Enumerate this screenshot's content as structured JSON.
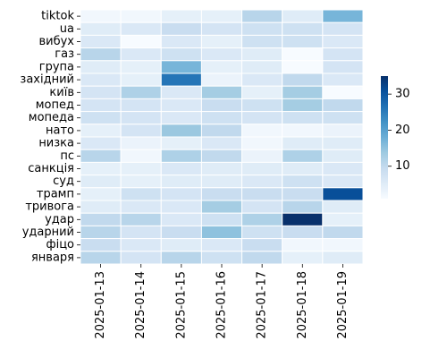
{
  "chart_data": {
    "type": "heatmap",
    "x": [
      "2025-01-13",
      "2025-01-14",
      "2025-01-15",
      "2025-01-16",
      "2025-01-17",
      "2025-01-18",
      "2025-01-19"
    ],
    "y": [
      "tiktok",
      "ua",
      "вибух",
      "газ",
      "група",
      "західний",
      "київ",
      "мопед",
      "мопеда",
      "нато",
      "низка",
      "пс",
      "санкція",
      "суд",
      "трамп",
      "тривога",
      "удар",
      "ударний",
      "фіцо",
      "января"
    ],
    "values": [
      [
        2,
        2,
        4,
        4,
        11,
        5,
        17
      ],
      [
        5,
        6,
        9,
        7,
        8,
        8,
        7
      ],
      [
        6,
        1,
        6,
        4,
        8,
        8,
        6
      ],
      [
        11,
        6,
        8,
        6,
        5,
        1,
        7
      ],
      [
        5,
        4,
        17,
        4,
        5,
        1,
        7
      ],
      [
        6,
        4,
        26,
        3,
        6,
        10,
        6
      ],
      [
        7,
        12,
        6,
        13,
        4,
        13,
        1
      ],
      [
        7,
        7,
        6,
        9,
        8,
        13,
        10
      ],
      [
        8,
        7,
        6,
        8,
        7,
        8,
        8
      ],
      [
        4,
        7,
        14,
        10,
        2,
        2,
        3
      ],
      [
        6,
        3,
        4,
        6,
        2,
        5,
        5
      ],
      [
        11,
        2,
        12,
        10,
        3,
        12,
        5
      ],
      [
        4,
        4,
        6,
        5,
        5,
        5,
        6
      ],
      [
        5,
        4,
        5,
        5,
        6,
        8,
        6
      ],
      [
        4,
        8,
        7,
        9,
        9,
        9,
        31
      ],
      [
        5,
        6,
        6,
        13,
        7,
        11,
        5
      ],
      [
        10,
        11,
        6,
        8,
        12,
        35,
        4
      ],
      [
        11,
        7,
        9,
        15,
        8,
        9,
        10
      ],
      [
        9,
        6,
        5,
        6,
        9,
        2,
        2
      ],
      [
        11,
        7,
        11,
        8,
        10,
        4,
        5
      ]
    ],
    "colorbar": {
      "ticks": [
        10,
        20,
        30
      ],
      "range": [
        1,
        35
      ]
    },
    "colormap": "Blues",
    "grid": false,
    "cell_border_color": "#ffffff"
  }
}
